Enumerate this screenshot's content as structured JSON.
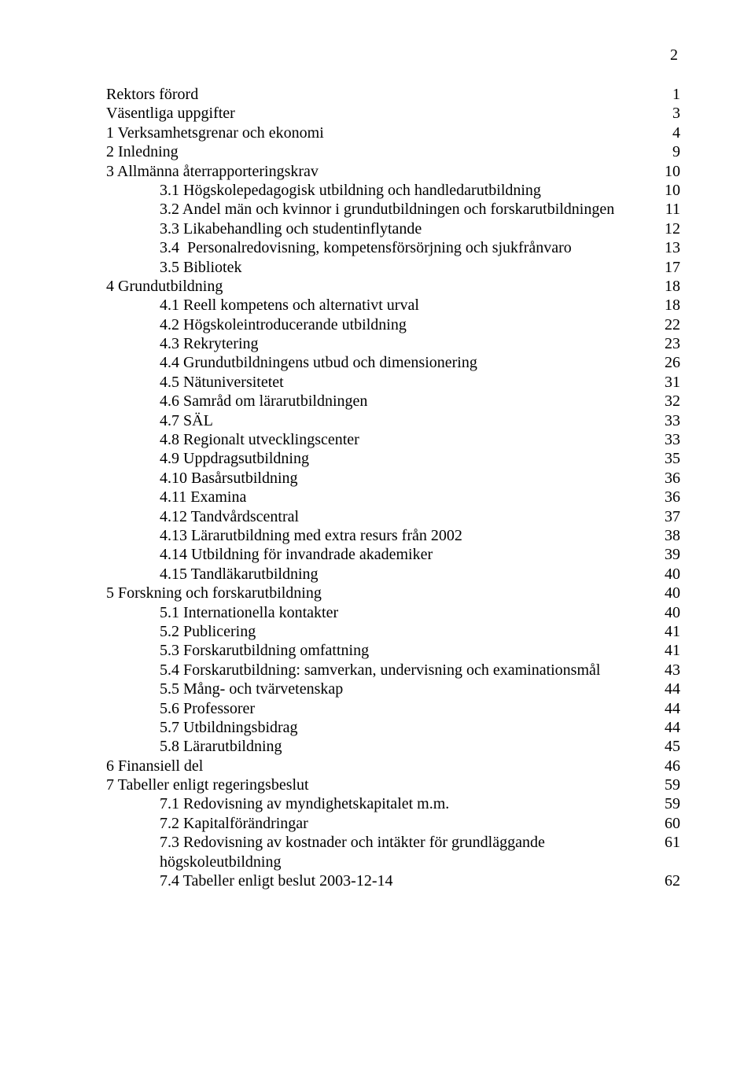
{
  "page_number": "2",
  "toc": [
    {
      "level": "top",
      "label": "Rektors förord",
      "page": "1"
    },
    {
      "level": "top",
      "label": "Väsentliga uppgifter",
      "page": "3"
    },
    {
      "level": "top",
      "label": "1 Verksamhetsgrenar och ekonomi",
      "page": "4"
    },
    {
      "level": "top",
      "label": "2 Inledning",
      "page": "9"
    },
    {
      "level": "top",
      "label": "3 Allmänna återrapporteringskrav",
      "page": "10"
    },
    {
      "level": "sub",
      "label": "3.1 Högskolepedagogisk utbildning och handledarutbildning",
      "page": "10"
    },
    {
      "level": "sub",
      "label": "3.2 Andel män och kvinnor i grundutbildningen och forskarutbildningen",
      "page": "11"
    },
    {
      "level": "sub",
      "label": "3.3 Likabehandling och studentinflytande",
      "page": "12"
    },
    {
      "level": "sub",
      "label": "3.4  Personalredovisning, kompetensförsörjning och sjukfrånvaro",
      "page": "13"
    },
    {
      "level": "sub",
      "label": "3.5 Bibliotek",
      "page": "17"
    },
    {
      "level": "top",
      "label": "4 Grundutbildning",
      "page": "18"
    },
    {
      "level": "sub",
      "label": "4.1 Reell kompetens och alternativt urval",
      "page": "18"
    },
    {
      "level": "sub",
      "label": "4.2 Högskoleintroducerande utbildning",
      "page": "22"
    },
    {
      "level": "sub",
      "label": "4.3 Rekrytering",
      "page": "23"
    },
    {
      "level": "sub",
      "label": "4.4 Grundutbildningens utbud och dimensionering",
      "page": "26"
    },
    {
      "level": "sub",
      "label": "4.5 Nätuniversitetet",
      "page": "31"
    },
    {
      "level": "sub",
      "label": "4.6 Samråd om lärarutbildningen",
      "page": "32"
    },
    {
      "level": "sub",
      "label": "4.7 SÄL",
      "page": "33"
    },
    {
      "level": "sub",
      "label": "4.8 Regionalt utvecklingscenter",
      "page": "33"
    },
    {
      "level": "sub",
      "label": "4.9 Uppdragsutbildning",
      "page": "35"
    },
    {
      "level": "sub",
      "label": "4.10 Basårsutbildning",
      "page": "36"
    },
    {
      "level": "sub",
      "label": "4.11 Examina",
      "page": "36"
    },
    {
      "level": "sub",
      "label": "4.12 Tandvårdscentral",
      "page": "37"
    },
    {
      "level": "sub",
      "label": "4.13 Lärarutbildning med extra resurs från 2002",
      "page": "38"
    },
    {
      "level": "sub",
      "label": "4.14 Utbildning för invandrade akademiker",
      "page": "39"
    },
    {
      "level": "sub",
      "label": "4.15 Tandläkarutbildning",
      "page": "40"
    },
    {
      "level": "top",
      "label": "5 Forskning och forskarutbildning",
      "page": "40"
    },
    {
      "level": "sub",
      "label": "5.1 Internationella kontakter",
      "page": "40"
    },
    {
      "level": "sub",
      "label": "5.2 Publicering",
      "page": "41"
    },
    {
      "level": "sub",
      "label": "5.3 Forskarutbildning omfattning",
      "page": "41"
    },
    {
      "level": "sub",
      "label": "5.4 Forskarutbildning: samverkan, undervisning och examinationsmål",
      "page": "43"
    },
    {
      "level": "sub",
      "label": "5.5 Mång- och tvärvetenskap",
      "page": "44"
    },
    {
      "level": "sub",
      "label": "5.6 Professorer",
      "page": "44"
    },
    {
      "level": "sub",
      "label": "5.7 Utbildningsbidrag",
      "page": "44"
    },
    {
      "level": "sub",
      "label": "5.8 Lärarutbildning",
      "page": "45"
    },
    {
      "level": "top",
      "label": "6 Finansiell del",
      "page": "46"
    },
    {
      "level": "top",
      "label": "7 Tabeller enligt regeringsbeslut",
      "page": "59"
    },
    {
      "level": "sub",
      "label": "7.1 Redovisning av myndighetskapitalet m.m.",
      "page": "59"
    },
    {
      "level": "sub",
      "label": "7.2 Kapitalförändringar",
      "page": "60"
    },
    {
      "level": "sub",
      "label": "7.3 Redovisning av kostnader och intäkter för grundläggande\nhögskoleutbildning",
      "page": "61"
    },
    {
      "level": "sub",
      "label": "7.4 Tabeller enligt beslut 2003-12-14",
      "page": "62"
    }
  ]
}
